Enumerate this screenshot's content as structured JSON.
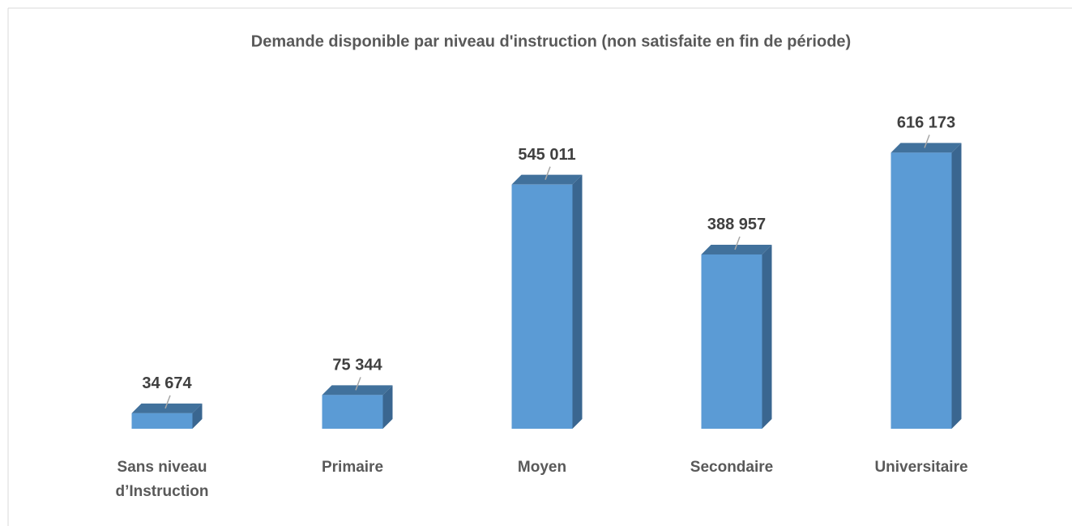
{
  "chart_data": {
    "type": "bar3d",
    "title": "Demande disponible par niveau d'instruction (non satisfaite en fin de période)",
    "categories": [
      "Sans niveau d’Instruction",
      "Primaire",
      "Moyen",
      "Secondaire",
      "Universitaire"
    ],
    "values": [
      34674,
      75344,
      545011,
      388957,
      616173
    ],
    "value_labels": [
      "34 674",
      "75 344",
      "545 011",
      "388 957",
      "616 173"
    ],
    "color": "#5b9bd5",
    "ylim": [
      0,
      700000
    ]
  }
}
